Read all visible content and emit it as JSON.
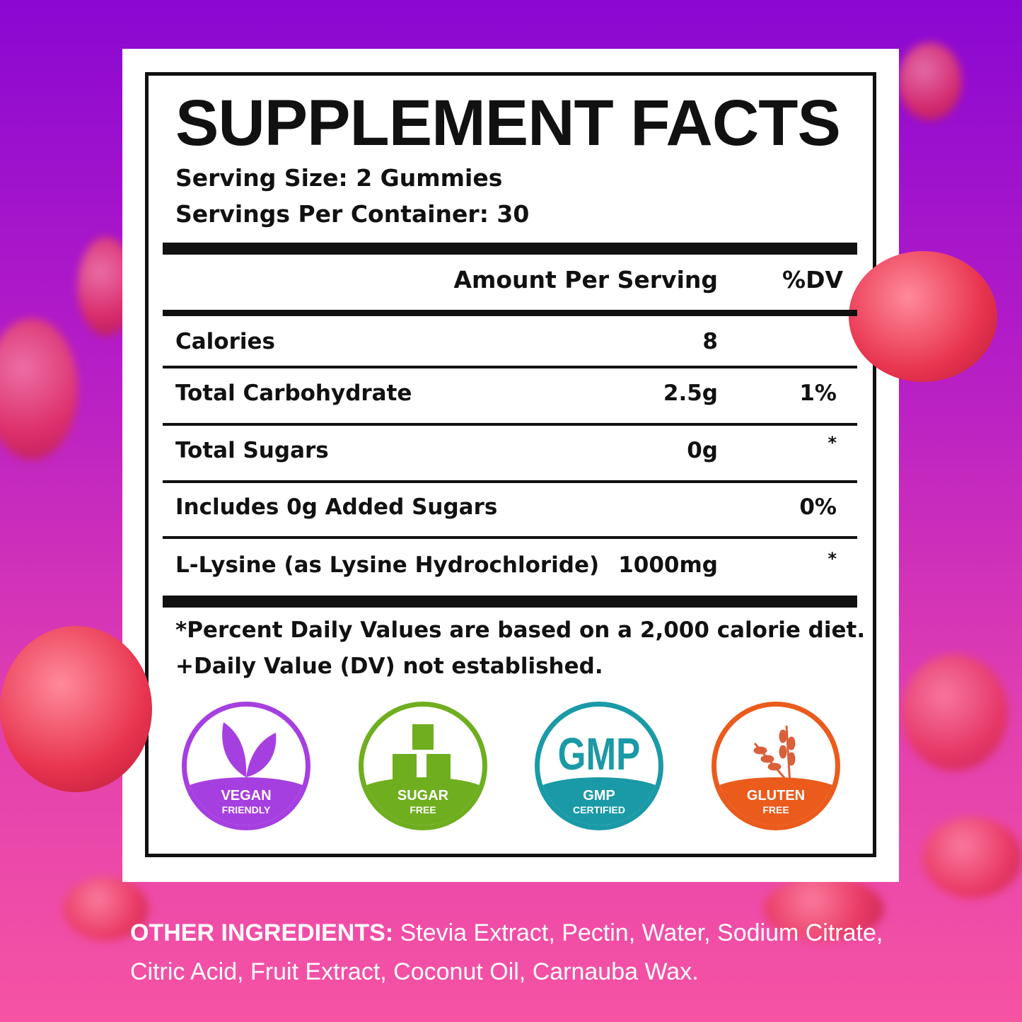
{
  "title": "SUPPLEMENT FACTS",
  "serving_size": "Serving Size: 2 Gummies",
  "servings_per_container": "Servings Per Container: 30",
  "header": {
    "amount": "Amount Per Serving",
    "dv": "%DV"
  },
  "rows": [
    {
      "name": "Calories",
      "amount": "8",
      "dv": ""
    },
    {
      "name": "Total Carbohydrate",
      "amount": "2.5g",
      "dv": "1%"
    },
    {
      "name": "Total Sugars",
      "amount": "0g",
      "dv": "*"
    },
    {
      "name": "Includes 0g Added Sugars",
      "amount": "",
      "dv": "0%"
    },
    {
      "name": "L-Lysine (as Lysine Hydrochloride)",
      "amount": "1000mg",
      "dv": "*"
    }
  ],
  "footnotes": [
    "*Percent Daily Values are based on a 2,000 calorie diet.",
    "+Daily Value (DV) not established."
  ],
  "badges": [
    {
      "icon": "leaf-icon",
      "line1": "VEGAN",
      "line2": "FRIENDLY",
      "color": "#a63fe0"
    },
    {
      "icon": "sugar-cubes-icon",
      "line1": "SUGAR",
      "line2": "FREE",
      "color": "#6fae1f"
    },
    {
      "icon": "gmp-icon",
      "logo_text": "GMP",
      "line1": "GMP",
      "line2": "CERTIFIED",
      "color": "#1a9aa6"
    },
    {
      "icon": "wheat-icon",
      "line1": "GLUTEN",
      "line2": "FREE",
      "color": "#ea5b1c"
    }
  ],
  "other_ingredients": {
    "label": "OTHER INGREDIENTS:",
    "text": " Stevia Extract, Pectin, Water, Sodium Citrate, Citric Acid, Fruit Extract, Coconut Oil, Carnauba Wax."
  }
}
